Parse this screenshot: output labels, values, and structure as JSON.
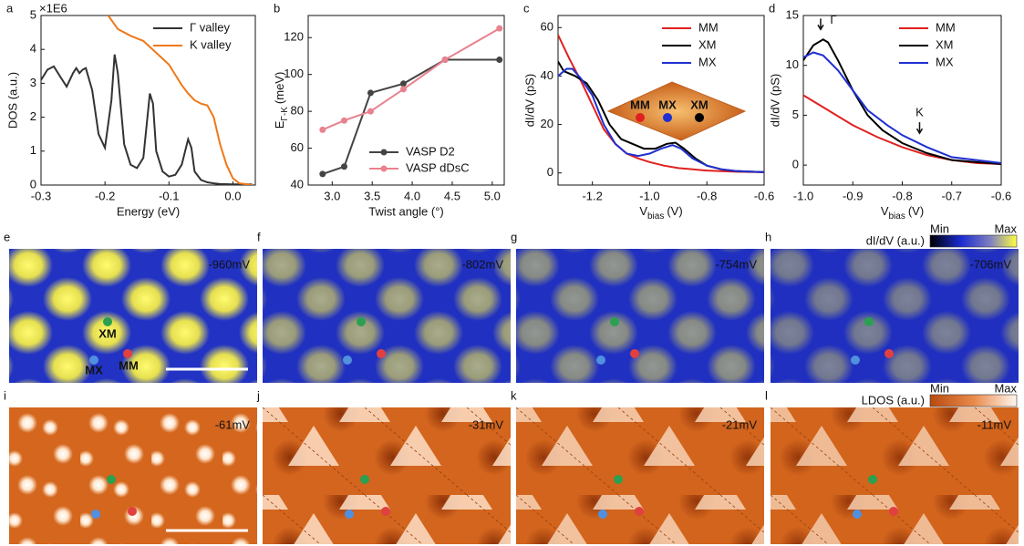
{
  "chart_data": [
    {
      "type": "line",
      "panel": "a",
      "x_label": "Energy (eV)",
      "y_label": "DOS (a.u.)",
      "y_multiplier": "×1E6",
      "xlim": [
        -0.3,
        0.035
      ],
      "xticks": [
        -0.3,
        -0.2,
        -0.1,
        {
          "value": 0,
          "label": "0.0"
        }
      ],
      "ylim": [
        0,
        5
      ],
      "yticks": [
        0,
        1,
        2,
        3,
        4,
        5
      ],
      "legend": "upper right",
      "markers": false,
      "series": [
        {
          "name": "Γ valley",
          "color": "#333333",
          "x": [
            -0.3,
            -0.29,
            -0.28,
            -0.27,
            -0.26,
            -0.25,
            -0.245,
            -0.24,
            -0.235,
            -0.23,
            -0.22,
            -0.21,
            -0.2,
            -0.19,
            -0.185,
            -0.18,
            -0.17,
            -0.16,
            -0.15,
            -0.14,
            -0.13,
            -0.125,
            -0.12,
            -0.11,
            -0.1,
            -0.09,
            -0.08,
            -0.07,
            -0.065,
            -0.06,
            -0.05,
            -0.04,
            -0.03,
            -0.02,
            0,
            0.03
          ],
          "values": [
            3.1,
            3.4,
            3.5,
            3.2,
            2.9,
            3.3,
            3.45,
            3.3,
            3.4,
            3.45,
            2.8,
            1.5,
            1.1,
            2.5,
            3.85,
            3.3,
            1.2,
            0.6,
            0.5,
            0.8,
            2.7,
            2.4,
            1.0,
            0.4,
            0.25,
            0.3,
            0.6,
            1.35,
            1.1,
            0.4,
            0.15,
            0.08,
            0.05,
            0.03,
            0.02,
            0.02
          ]
        },
        {
          "name": "K valley",
          "color": "#f07818",
          "x": [
            -0.195,
            -0.18,
            -0.16,
            -0.14,
            -0.12,
            -0.1,
            -0.09,
            -0.08,
            -0.07,
            -0.06,
            -0.05,
            -0.04,
            -0.03,
            -0.02,
            -0.01,
            0,
            0.01,
            0.03
          ],
          "values": [
            5,
            4.6,
            4.4,
            4.25,
            3.9,
            3.55,
            3.25,
            2.95,
            2.7,
            2.5,
            2.4,
            2.35,
            2.0,
            1.2,
            0.6,
            0.2,
            0.05,
            0
          ]
        }
      ]
    },
    {
      "type": "line",
      "panel": "b",
      "x_label": "Twist angle (°)",
      "y_label": {
        "text": "E",
        "sub": "Γ-K",
        "unit": "(meV)"
      },
      "xlim": [
        2.7,
        5.15
      ],
      "xticks": [
        {
          "value": 3,
          "label": "3.0"
        },
        3.5,
        {
          "value": 4,
          "label": "4.0"
        },
        4.5,
        {
          "value": 5,
          "label": "5.0"
        }
      ],
      "ylim": [
        40,
        132
      ],
      "yticks": [
        40,
        60,
        80,
        100,
        120
      ],
      "legend": "lower right",
      "markers": true,
      "series": [
        {
          "name": "VASP D2",
          "color": "#444444",
          "x": [
            2.88,
            3.15,
            3.48,
            3.89,
            4.41,
            5.09
          ],
          "values": [
            46,
            50,
            90,
            95,
            108,
            108
          ]
        },
        {
          "name": "VASP dDsC",
          "color": "#e8828e",
          "x": [
            2.88,
            3.15,
            3.48,
            3.89,
            4.41,
            5.09
          ],
          "values": [
            70,
            75,
            80,
            92,
            108,
            125
          ]
        }
      ]
    },
    {
      "type": "line",
      "panel": "c",
      "x_label": {
        "text": "V",
        "sub": "bias",
        "unit": "(V)"
      },
      "y_label": "dI/dV (pS)",
      "xlim": [
        -1.32,
        -0.6
      ],
      "xticks": [
        -1.2,
        {
          "value": -1,
          "label": "-1.0"
        },
        -0.8,
        -0.6
      ],
      "ylim": [
        -5,
        65
      ],
      "yticks": [
        0,
        20,
        40,
        60
      ],
      "legend": "upper right",
      "markers": false,
      "inset_labels": [
        "MM",
        "MX",
        "XM"
      ],
      "series": [
        {
          "name": "MM",
          "color": "#e02020",
          "x": [
            -1.32,
            -1.28,
            -1.24,
            -1.2,
            -1.16,
            -1.12,
            -1.08,
            -1.04,
            -1.0,
            -0.95,
            -0.9,
            -0.8,
            -0.7,
            -0.6
          ],
          "values": [
            57,
            47,
            38,
            28,
            18,
            12,
            8,
            6,
            4.5,
            3,
            2,
            1,
            0.5,
            0.3
          ]
        },
        {
          "name": "XM",
          "color": "#000000",
          "x": [
            -1.32,
            -1.3,
            -1.26,
            -1.22,
            -1.18,
            -1.14,
            -1.1,
            -1.06,
            -1.02,
            -0.98,
            -0.94,
            -0.91,
            -0.88,
            -0.84,
            -0.8,
            -0.75,
            -0.7,
            -0.6
          ],
          "values": [
            46,
            42,
            40,
            37,
            30,
            20,
            14,
            12,
            10,
            10,
            12,
            12.5,
            10,
            6,
            3,
            1.5,
            0.8,
            0.3
          ]
        },
        {
          "name": "MX",
          "color": "#1f2fd0",
          "x": [
            -1.32,
            -1.29,
            -1.27,
            -1.24,
            -1.2,
            -1.16,
            -1.12,
            -1.08,
            -1.04,
            -1.0,
            -0.96,
            -0.92,
            -0.89,
            -0.85,
            -0.8,
            -0.75,
            -0.7,
            -0.6
          ],
          "values": [
            40,
            43,
            43,
            39,
            32,
            20,
            12,
            8,
            7,
            8,
            10,
            11.5,
            10,
            6,
            3,
            1.5,
            0.8,
            0.3
          ]
        }
      ]
    },
    {
      "type": "line",
      "panel": "d",
      "x_label": {
        "text": "V",
        "sub": "bias",
        "unit": "(V)"
      },
      "y_label": "dI/dV (pS)",
      "xlim": [
        -1.0,
        -0.6
      ],
      "xticks": [
        {
          "value": -1,
          "label": "-1.0"
        },
        -0.9,
        -0.8,
        -0.7,
        -0.6
      ],
      "ylim": [
        -2,
        15
      ],
      "yticks": [
        0,
        5,
        10,
        15
      ],
      "legend": "upper right",
      "markers": false,
      "annotations": [
        "Γ",
        "K"
      ],
      "series": [
        {
          "name": "MM",
          "color": "#e02020",
          "x": [
            -1.0,
            -0.95,
            -0.9,
            -0.85,
            -0.8,
            -0.75,
            -0.7,
            -0.65,
            -0.6
          ],
          "values": [
            7,
            5.5,
            4,
            2.8,
            1.8,
            1,
            0.5,
            0.2,
            0.1
          ]
        },
        {
          "name": "XM",
          "color": "#000000",
          "x": [
            -1.0,
            -0.98,
            -0.96,
            -0.95,
            -0.93,
            -0.9,
            -0.87,
            -0.84,
            -0.8,
            -0.75,
            -0.7,
            -0.6
          ],
          "values": [
            10.5,
            12,
            12.6,
            12.3,
            10.5,
            7.5,
            5,
            3.5,
            2.2,
            1.2,
            0.5,
            0.1
          ]
        },
        {
          "name": "MX",
          "color": "#1f2fd0",
          "x": [
            -1.0,
            -0.98,
            -0.96,
            -0.93,
            -0.9,
            -0.87,
            -0.83,
            -0.8,
            -0.75,
            -0.7,
            -0.6
          ],
          "values": [
            10.8,
            11.3,
            11,
            9.5,
            7.5,
            5.5,
            4,
            3,
            1.8,
            0.8,
            0.2
          ]
        }
      ]
    }
  ],
  "image_panels": [
    {
      "letter": "e",
      "label": "-960mV"
    },
    {
      "letter": "f",
      "label": "-802mV"
    },
    {
      "letter": "g",
      "label": "-754mV"
    },
    {
      "letter": "h",
      "label": "-706mV"
    },
    {
      "letter": "i",
      "label": "-61mV"
    },
    {
      "letter": "j",
      "label": "-31mV"
    },
    {
      "letter": "k",
      "label": "-21mV"
    },
    {
      "letter": "l",
      "label": "-11mV"
    }
  ],
  "site_labels": [
    "XM",
    "MX",
    "MM"
  ],
  "colorbars": [
    {
      "title": "dI/dV (a.u.)",
      "min": "Min",
      "max": "Max"
    },
    {
      "title": "LDOS (a.u.)",
      "min": "Min",
      "max": "Max"
    }
  ]
}
